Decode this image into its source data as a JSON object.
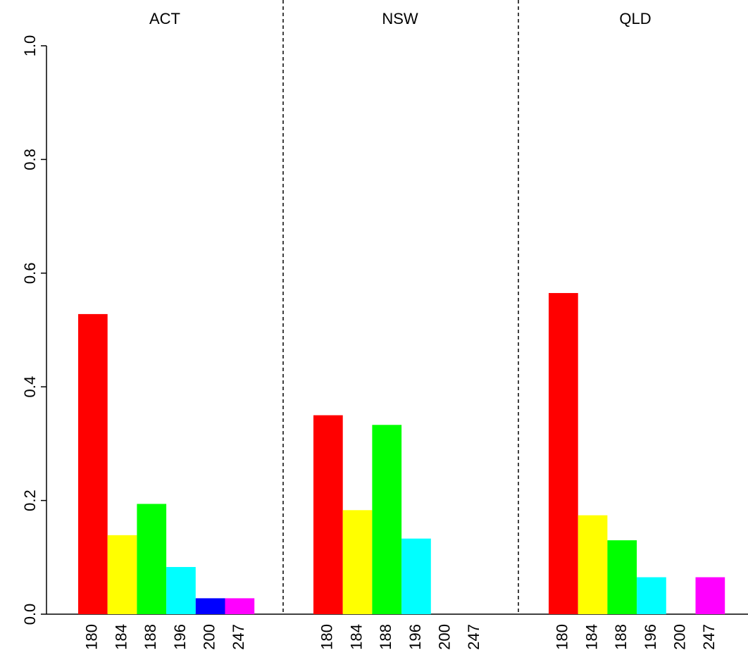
{
  "chart_data": {
    "type": "bar",
    "categories": [
      "180",
      "184",
      "188",
      "196",
      "200",
      "247"
    ],
    "colors": [
      "#ff0000",
      "#ffff00",
      "#00ff00",
      "#00ffff",
      "#0000ff",
      "#ff00ff"
    ],
    "panels": [
      {
        "title": "ACT",
        "values": [
          0.528,
          0.139,
          0.194,
          0.083,
          0.028,
          0.028
        ]
      },
      {
        "title": "NSW",
        "values": [
          0.35,
          0.183,
          0.333,
          0.133,
          0,
          0
        ]
      },
      {
        "title": "QLD",
        "values": [
          0.565,
          0.174,
          0.13,
          0.065,
          0,
          0.065
        ]
      }
    ],
    "ylim": [
      0,
      1
    ],
    "yticks": [
      {
        "value": 0,
        "label": "0.0"
      },
      0.2,
      0.4,
      0.6,
      0.8,
      {
        "value": 1,
        "label": "1.0"
      }
    ]
  }
}
